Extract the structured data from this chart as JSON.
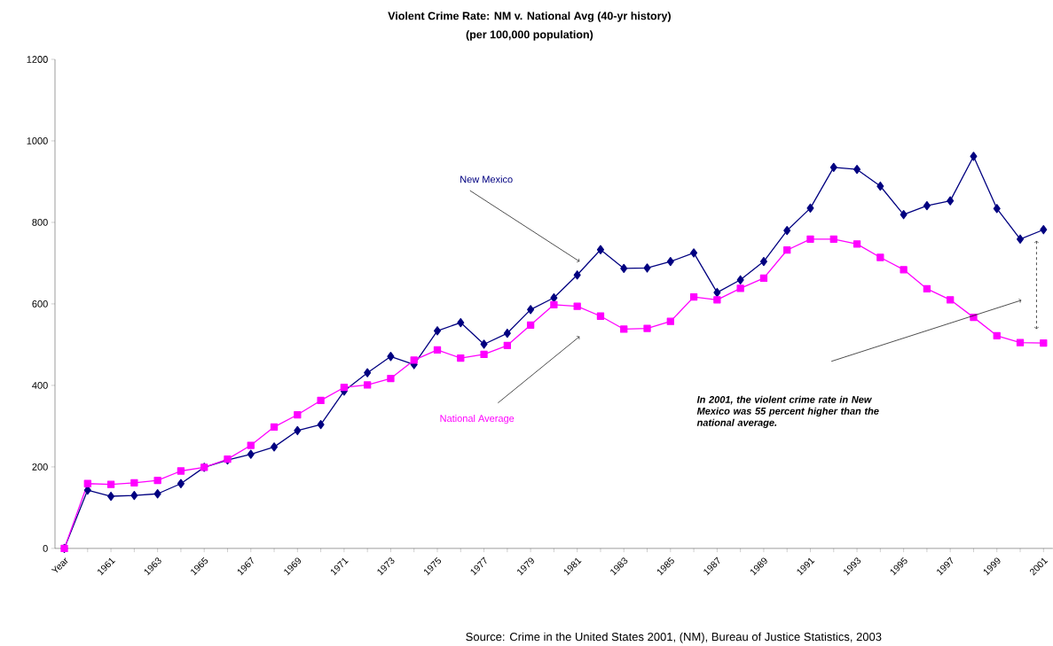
{
  "chart_data": {
    "type": "line",
    "title": "Violent Crime Rate: NM v. National Avg (40-yr history)",
    "subtitle": "(per 100,000 population)",
    "categories": [
      "Year",
      null,
      "1961",
      null,
      "1963",
      null,
      "1965",
      null,
      "1967",
      null,
      "1969",
      null,
      "1971",
      null,
      "1973",
      null,
      "1975",
      null,
      "1977",
      null,
      "1979",
      null,
      "1981",
      null,
      "1983",
      null,
      "1985",
      null,
      "1987",
      null,
      "1989",
      null,
      "1991",
      null,
      "1993",
      null,
      "1995",
      null,
      "1997",
      null,
      "1999",
      null,
      "2001"
    ],
    "series": [
      {
        "name": "New Mexico",
        "color": "#000080",
        "marker": "diamond",
        "values": [
          0,
          143,
          128,
          130,
          134,
          159,
          199,
          217,
          231,
          249,
          289,
          304,
          386,
          431,
          471,
          451,
          534,
          554,
          501,
          528,
          586,
          615,
          671,
          733,
          687,
          688,
          704,
          725,
          628,
          659,
          704,
          780,
          835,
          935,
          930,
          889,
          819,
          841,
          853,
          962,
          834,
          759,
          782
        ]
      },
      {
        "name": "National Average",
        "color": "#ff00ff",
        "marker": "square",
        "values": [
          0,
          159,
          157,
          161,
          167,
          190,
          199,
          219,
          253,
          298,
          328,
          363,
          395,
          401,
          417,
          462,
          487,
          467,
          476,
          498,
          548,
          598,
          594,
          570,
          538,
          540,
          557,
          617,
          610,
          638,
          663,
          732,
          759,
          759,
          747,
          714,
          684,
          637,
          610,
          567,
          522,
          505,
          504
        ]
      }
    ],
    "ylim": [
      0,
      1200
    ],
    "yticks": [
      0,
      200,
      400,
      600,
      800,
      1000,
      1200
    ],
    "grid": false,
    "legend": false,
    "annotations": [
      "In 2001, the violent crime rate in New Mexico was 55 percent higher than the national average.",
      "Source: Crime in the United States 2001, (NM), Bureau of Justice Statistics, 2003"
    ]
  }
}
